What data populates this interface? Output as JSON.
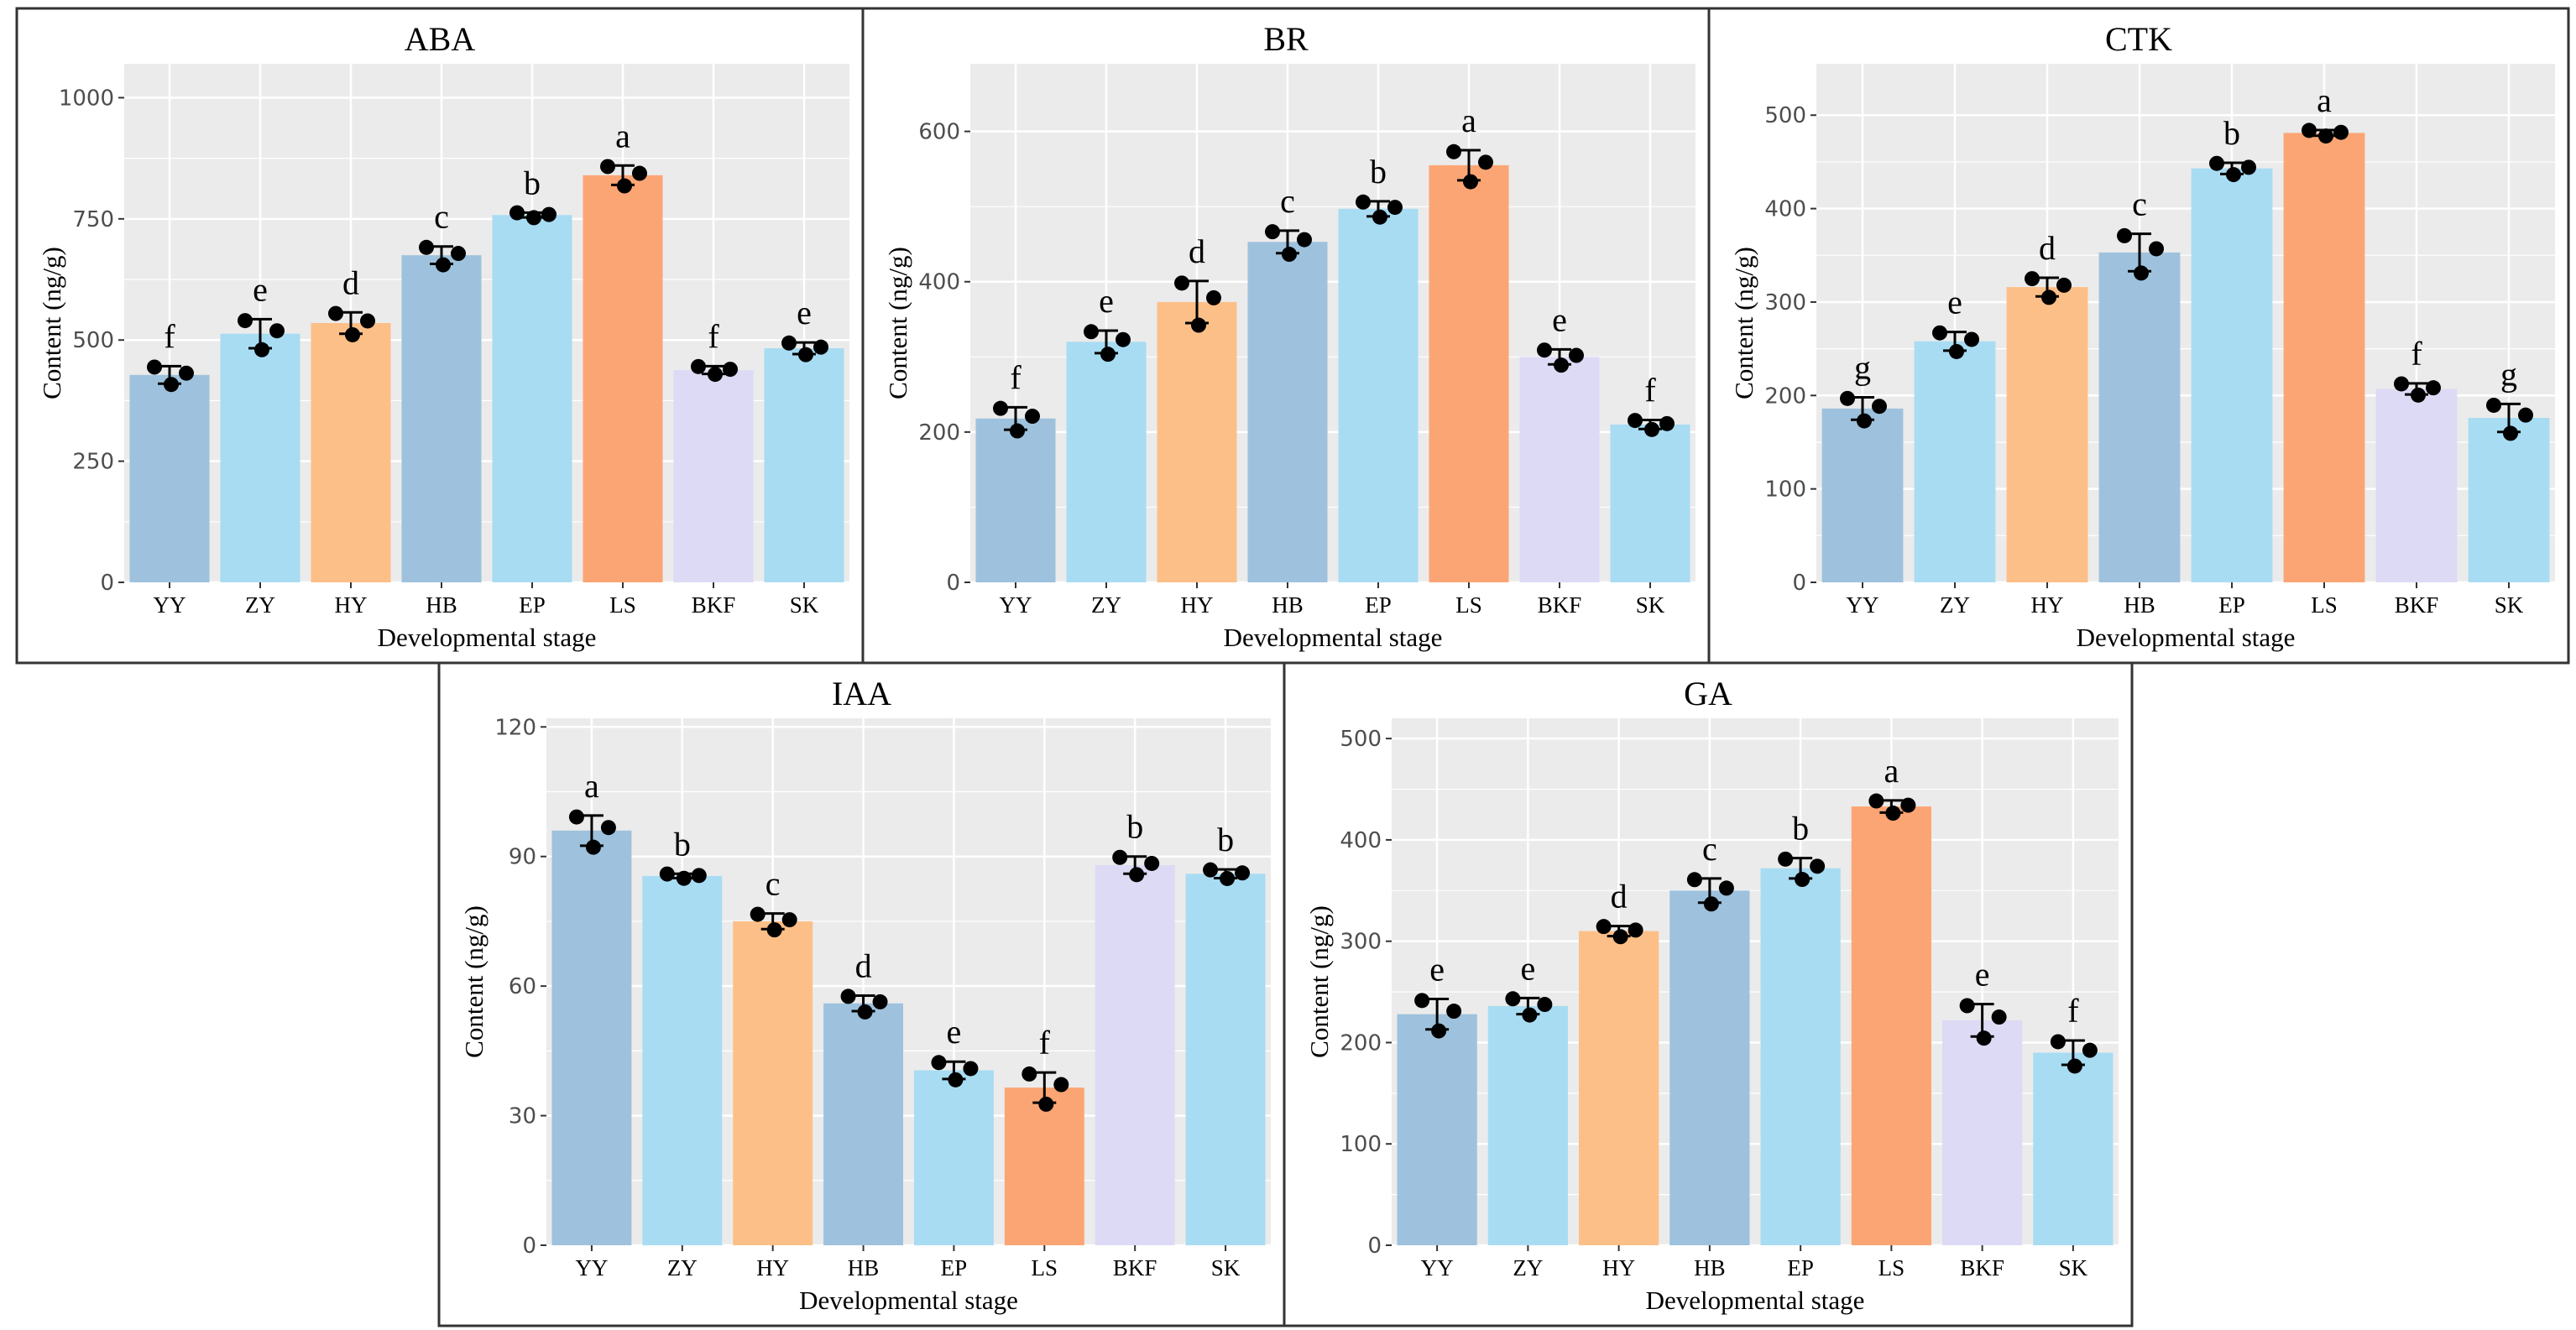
{
  "chart_data": [
    {
      "type": "bar",
      "title": "ABA",
      "xlabel": "Developmental stage",
      "ylabel": "Content (ng/g)",
      "ylim": [
        0,
        1070
      ],
      "yticks": [
        0,
        250,
        500,
        750,
        1000
      ],
      "categories": [
        "YY",
        "ZY",
        "HY",
        "HB",
        "EP",
        "LS",
        "BKF",
        "SK"
      ],
      "values": [
        428,
        513,
        535,
        675,
        758,
        840,
        438,
        483
      ],
      "sd": [
        18,
        30,
        22,
        18,
        5,
        20,
        8,
        12
      ],
      "letters": [
        "f",
        "e",
        "d",
        "c",
        "b",
        "a",
        "f",
        "e"
      ]
    },
    {
      "type": "bar",
      "title": "BR",
      "xlabel": "Developmental stage",
      "ylabel": "Content (ng/g)",
      "ylim": [
        0,
        690
      ],
      "yticks": [
        0,
        200,
        400,
        600
      ],
      "categories": [
        "YY",
        "ZY",
        "HY",
        "HB",
        "EP",
        "LS",
        "BKF",
        "SK"
      ],
      "values": [
        218,
        320,
        373,
        453,
        497,
        555,
        300,
        210
      ],
      "sd": [
        15,
        15,
        28,
        15,
        10,
        20,
        10,
        6
      ],
      "letters": [
        "f",
        "e",
        "d",
        "c",
        "b",
        "a",
        "e",
        "f"
      ]
    },
    {
      "type": "bar",
      "title": "CTK",
      "xlabel": "Developmental stage",
      "ylabel": "Content (ng/g)",
      "ylim": [
        0,
        555
      ],
      "yticks": [
        0,
        100,
        200,
        300,
        400,
        500
      ],
      "categories": [
        "YY",
        "ZY",
        "HY",
        "HB",
        "EP",
        "LS",
        "BKF",
        "SK"
      ],
      "values": [
        186,
        258,
        316,
        353,
        443,
        481,
        207,
        176
      ],
      "sd": [
        12,
        10,
        10,
        20,
        6,
        3,
        6,
        15
      ],
      "letters": [
        "g",
        "e",
        "d",
        "c",
        "b",
        "a",
        "f",
        "g"
      ]
    },
    {
      "type": "bar",
      "title": "IAA",
      "xlabel": "Developmental stage",
      "ylabel": "Content (ng/g)",
      "ylim": [
        0,
        122
      ],
      "yticks": [
        0,
        30,
        60,
        90,
        120
      ],
      "categories": [
        "YY",
        "ZY",
        "HY",
        "HB",
        "EP",
        "LS",
        "BKF",
        "SK"
      ],
      "values": [
        96,
        85.5,
        75,
        56,
        40.5,
        36.5,
        88,
        86
      ],
      "sd": [
        3.5,
        0.5,
        1.8,
        1.8,
        2,
        3.5,
        2,
        1
      ],
      "letters": [
        "a",
        "b",
        "c",
        "d",
        "e",
        "f",
        "b",
        "b"
      ]
    },
    {
      "type": "bar",
      "title": "GA",
      "xlabel": "Developmental stage",
      "ylabel": "Content (ng/g)",
      "ylim": [
        0,
        520
      ],
      "yticks": [
        0,
        100,
        200,
        300,
        400,
        500
      ],
      "categories": [
        "YY",
        "ZY",
        "HY",
        "HB",
        "EP",
        "LS",
        "BKF",
        "SK"
      ],
      "values": [
        228,
        236,
        310,
        350,
        372,
        433,
        222,
        190
      ],
      "sd": [
        15,
        8,
        5,
        12,
        10,
        6,
        16,
        12
      ],
      "letters": [
        "e",
        "e",
        "d",
        "c",
        "b",
        "a",
        "e",
        "f"
      ]
    }
  ],
  "colors": {
    "YY": "#9ec2dd",
    "ZY": "#a8dcf3",
    "HY": "#fdbf88",
    "HB": "#9ec2dd",
    "EP": "#a8dcf3",
    "LS": "#fca574",
    "BKF": "#dddaf5",
    "SK": "#a8dcf3",
    "panel_bg": "#ebebeb"
  }
}
